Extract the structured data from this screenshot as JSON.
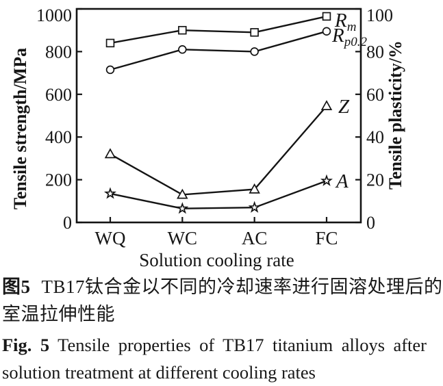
{
  "figure": {
    "caption_zh": {
      "label": "图5",
      "line1": "TB17钛合金以不同的冷却速率进行固溶处理后的",
      "line2": "室温拉伸性能"
    },
    "caption_en": {
      "label": "Fig. 5",
      "line1": "Tensile properties of TB17 titanium alloys after",
      "line2": "solution treatment at different cooling rates"
    }
  },
  "chart_data": {
    "type": "line",
    "title": "",
    "xlabel": "Solution cooling rate",
    "ylabel_left": "Tensile strength/MPa",
    "ylabel_right": "Tensile plasticity/%",
    "categories": [
      "WQ",
      "WC",
      "AC",
      "FC"
    ],
    "ylim_left": [
      0,
      1000
    ],
    "ylim_right": [
      0,
      100
    ],
    "yticks_left": [
      0,
      200,
      400,
      600,
      800,
      1000
    ],
    "yticks_right": [
      0,
      20,
      40,
      60,
      80,
      100
    ],
    "grid": false,
    "legend_position": "labels-right-of-last-point",
    "line_color": "#141414",
    "series": [
      {
        "name": "Rm",
        "label_main": "R",
        "label_sub": "m",
        "marker": "square",
        "axis": "left",
        "unit": "MPa",
        "values": [
          840,
          900,
          890,
          965
        ]
      },
      {
        "name": "Rp0.2",
        "label_main": "R",
        "label_sub": "p0.2",
        "marker": "circle",
        "axis": "left",
        "unit": "MPa",
        "values": [
          715,
          810,
          800,
          895
        ]
      },
      {
        "name": "Z",
        "label_main": "Z",
        "label_sub": "",
        "marker": "triangle",
        "axis": "right",
        "unit": "%",
        "values": [
          32,
          13,
          15.5,
          54.5
        ]
      },
      {
        "name": "A",
        "label_main": "A",
        "label_sub": "",
        "marker": "star",
        "axis": "right",
        "unit": "%",
        "values": [
          13.5,
          6.5,
          7,
          19.5
        ]
      }
    ]
  }
}
